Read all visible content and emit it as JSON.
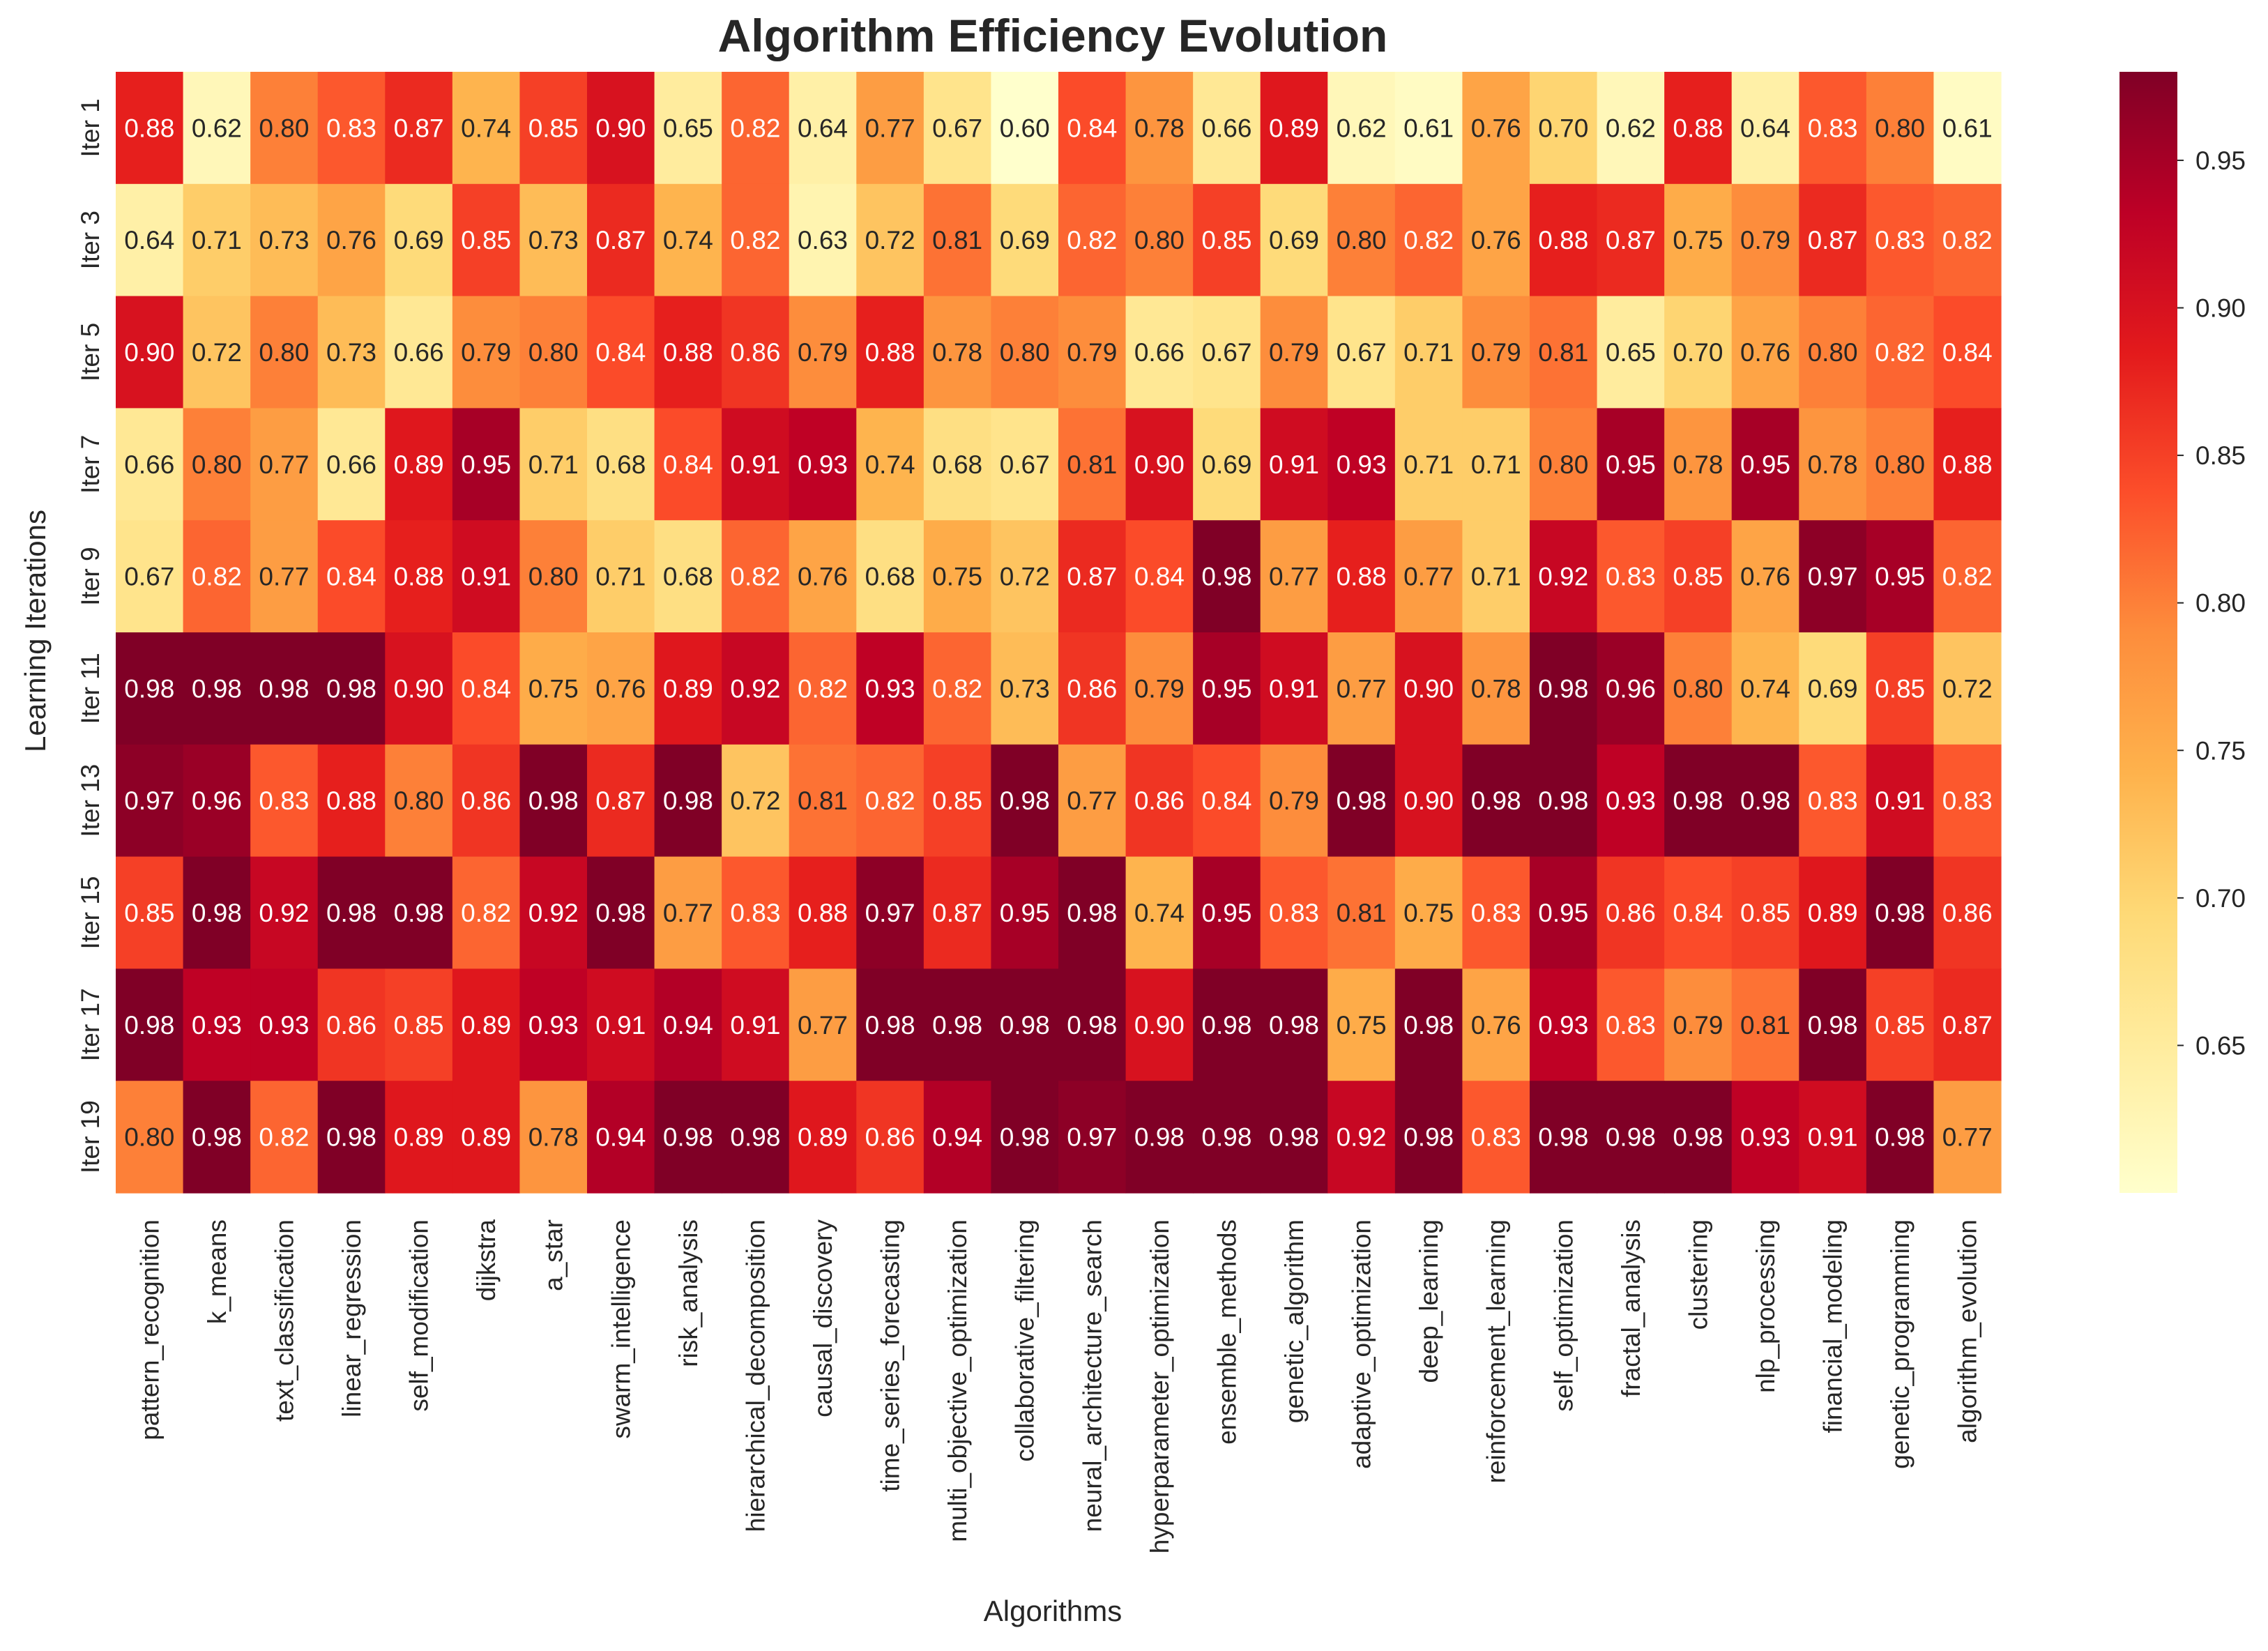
{
  "chart_data": {
    "type": "heatmap",
    "title": "Algorithm Efficiency Evolution",
    "xlabel": "Algorithms",
    "ylabel": "Learning Iterations",
    "x_categories": [
      "pattern_recognition",
      "k_means",
      "text_classification",
      "linear_regression",
      "self_modification",
      "dijkstra",
      "a_star",
      "swarm_intelligence",
      "risk_analysis",
      "hierarchical_decomposition",
      "causal_discovery",
      "time_series_forecasting",
      "multi_objective_optimization",
      "collaborative_filtering",
      "neural_architecture_search",
      "hyperparameter_optimization",
      "ensemble_methods",
      "genetic_algorithm",
      "adaptive_optimization",
      "deep_learning",
      "reinforcement_learning",
      "self_optimization",
      "fractal_analysis",
      "clustering",
      "nlp_processing",
      "financial_modeling",
      "genetic_programming",
      "algorithm_evolution"
    ],
    "y_categories": [
      "Iter 1",
      "Iter 3",
      "Iter 5",
      "Iter 7",
      "Iter 9",
      "Iter 11",
      "Iter 13",
      "Iter 15",
      "Iter 17",
      "Iter 19"
    ],
    "values": [
      [
        0.88,
        0.62,
        0.8,
        0.83,
        0.87,
        0.74,
        0.85,
        0.9,
        0.65,
        0.82,
        0.64,
        0.77,
        0.67,
        0.6,
        0.84,
        0.78,
        0.66,
        0.89,
        0.62,
        0.61,
        0.76,
        0.7,
        0.62,
        0.88,
        0.64,
        0.83,
        0.8,
        0.61
      ],
      [
        0.64,
        0.71,
        0.73,
        0.76,
        0.69,
        0.85,
        0.73,
        0.87,
        0.74,
        0.82,
        0.63,
        0.72,
        0.81,
        0.69,
        0.82,
        0.8,
        0.85,
        0.69,
        0.8,
        0.82,
        0.76,
        0.88,
        0.87,
        0.75,
        0.79,
        0.87,
        0.83,
        0.82
      ],
      [
        0.9,
        0.72,
        0.8,
        0.73,
        0.66,
        0.79,
        0.8,
        0.84,
        0.88,
        0.86,
        0.79,
        0.88,
        0.78,
        0.8,
        0.79,
        0.66,
        0.67,
        0.79,
        0.67,
        0.71,
        0.79,
        0.81,
        0.65,
        0.7,
        0.76,
        0.8,
        0.82,
        0.84
      ],
      [
        0.66,
        0.8,
        0.77,
        0.66,
        0.89,
        0.95,
        0.71,
        0.68,
        0.84,
        0.91,
        0.93,
        0.74,
        0.68,
        0.67,
        0.81,
        0.9,
        0.69,
        0.91,
        0.93,
        0.71,
        0.71,
        0.8,
        0.95,
        0.78,
        0.95,
        0.78,
        0.8,
        0.88
      ],
      [
        0.67,
        0.82,
        0.77,
        0.84,
        0.88,
        0.91,
        0.8,
        0.71,
        0.68,
        0.82,
        0.76,
        0.68,
        0.75,
        0.72,
        0.87,
        0.84,
        0.98,
        0.77,
        0.88,
        0.77,
        0.71,
        0.92,
        0.83,
        0.85,
        0.76,
        0.97,
        0.95,
        0.82
      ],
      [
        0.98,
        0.98,
        0.98,
        0.98,
        0.9,
        0.84,
        0.75,
        0.76,
        0.89,
        0.92,
        0.82,
        0.93,
        0.82,
        0.73,
        0.86,
        0.79,
        0.95,
        0.91,
        0.77,
        0.9,
        0.78,
        0.98,
        0.96,
        0.8,
        0.74,
        0.69,
        0.85,
        0.72
      ],
      [
        0.97,
        0.96,
        0.83,
        0.88,
        0.8,
        0.86,
        0.98,
        0.87,
        0.98,
        0.72,
        0.81,
        0.82,
        0.85,
        0.98,
        0.77,
        0.86,
        0.84,
        0.79,
        0.98,
        0.9,
        0.98,
        0.98,
        0.93,
        0.98,
        0.98,
        0.83,
        0.91,
        0.83
      ],
      [
        0.85,
        0.98,
        0.92,
        0.98,
        0.98,
        0.82,
        0.92,
        0.98,
        0.77,
        0.83,
        0.88,
        0.97,
        0.87,
        0.95,
        0.98,
        0.74,
        0.95,
        0.83,
        0.81,
        0.75,
        0.83,
        0.95,
        0.86,
        0.84,
        0.85,
        0.89,
        0.98,
        0.86
      ],
      [
        0.98,
        0.93,
        0.93,
        0.86,
        0.85,
        0.89,
        0.93,
        0.91,
        0.94,
        0.91,
        0.77,
        0.98,
        0.98,
        0.98,
        0.98,
        0.9,
        0.98,
        0.98,
        0.75,
        0.98,
        0.76,
        0.93,
        0.83,
        0.79,
        0.81,
        0.98,
        0.85,
        0.87
      ],
      [
        0.8,
        0.98,
        0.82,
        0.98,
        0.89,
        0.89,
        0.78,
        0.94,
        0.98,
        0.98,
        0.89,
        0.86,
        0.94,
        0.98,
        0.97,
        0.98,
        0.98,
        0.98,
        0.92,
        0.98,
        0.83,
        0.98,
        0.98,
        0.98,
        0.93,
        0.91,
        0.98,
        0.77
      ]
    ],
    "value_format": "0.00",
    "colormap": "YlOrRd",
    "color_range": [
      0.6,
      0.98
    ],
    "colorbar_ticks": [
      "0.65",
      "0.70",
      "0.75",
      "0.80",
      "0.85",
      "0.90",
      "0.95"
    ],
    "grid": false
  }
}
